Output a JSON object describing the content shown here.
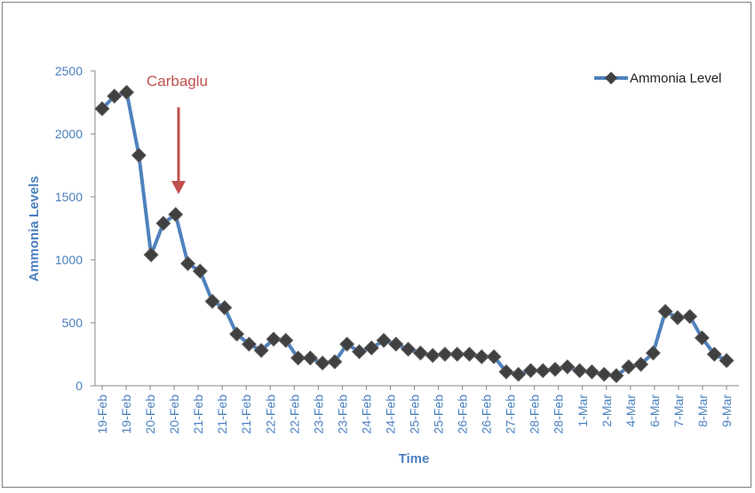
{
  "chart_data": {
    "type": "line",
    "title": "",
    "xlabel": "Time",
    "ylabel": "Ammonia Levels",
    "ylim": [
      0,
      2500
    ],
    "yticks": [
      0,
      500,
      1000,
      1500,
      2000,
      2500
    ],
    "grid": false,
    "legend_position": "top-right",
    "x_tick_labels": [
      "19-Feb",
      "19-Feb",
      "20-Feb",
      "20-Feb",
      "21-Feb",
      "21-Feb",
      "21-Feb",
      "22-Feb",
      "22-Feb",
      "23-Feb",
      "23-Feb",
      "24-Feb",
      "24-Feb",
      "25-Feb",
      "25-Feb",
      "26-Feb",
      "26-Feb",
      "27-Feb",
      "28-Feb",
      "28-Feb",
      "1-Mar",
      "2-Mar",
      "4-Mar",
      "6-Mar",
      "7-Mar",
      "8-Mar",
      "9-Mar"
    ],
    "series": [
      {
        "name": "Ammonia Level",
        "color": "#4f81bd",
        "marker_color": "#404040",
        "values": [
          2200,
          2300,
          2330,
          1830,
          1040,
          1290,
          1360,
          970,
          910,
          670,
          620,
          410,
          330,
          280,
          370,
          360,
          220,
          220,
          180,
          190,
          330,
          270,
          300,
          360,
          330,
          290,
          260,
          240,
          250,
          250,
          250,
          230,
          230,
          110,
          90,
          120,
          120,
          130,
          150,
          120,
          110,
          90,
          80,
          150,
          170,
          260,
          590,
          540,
          550,
          380,
          250,
          200
        ]
      }
    ],
    "annotations": [
      {
        "text": "Carbaglu",
        "color": "#c0504d",
        "point_index": 6
      }
    ]
  }
}
